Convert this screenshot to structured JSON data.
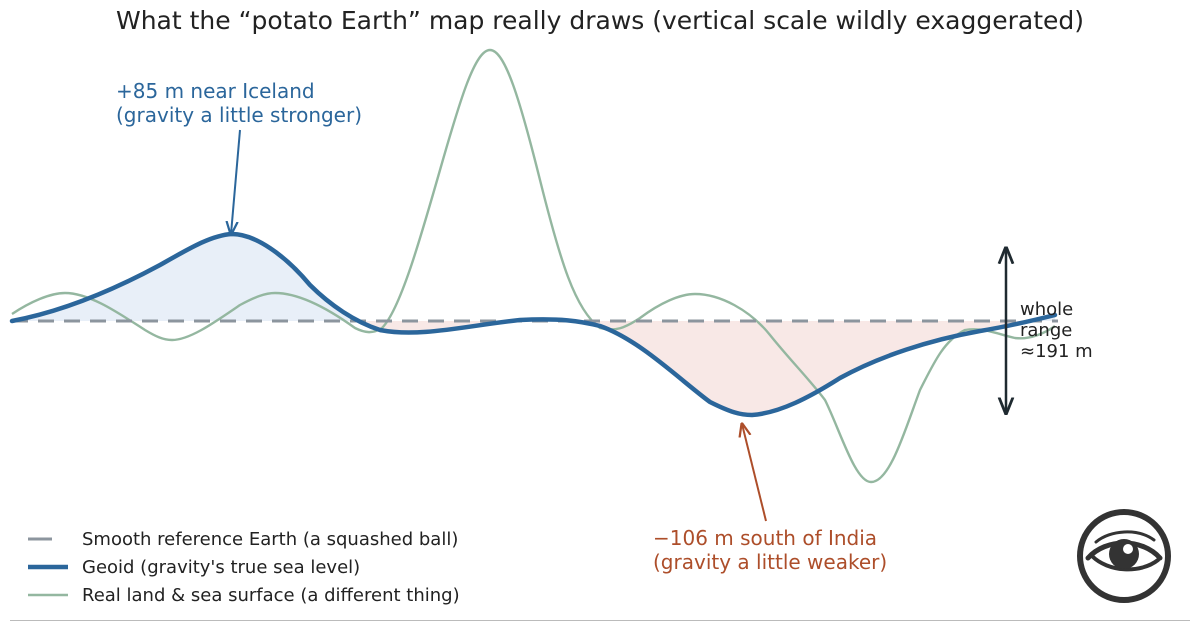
{
  "title": "What the “potato Earth” map really draws (vertical scale wildly exaggerated)",
  "annotations": {
    "high": {
      "line1": "+85 m near Iceland",
      "line2": "(gravity a little stronger)"
    },
    "low": {
      "line1": "−106 m south of India",
      "line2": "(gravity a little weaker)"
    },
    "range": {
      "line1": "whole",
      "line2": "range",
      "line3": "≈191 m"
    }
  },
  "legend": [
    {
      "label": "Smooth reference Earth (a squashed ball)",
      "style": "dashed",
      "color": "#8c959e"
    },
    {
      "label": "Geoid (gravity's true sea level)",
      "style": "thick",
      "color": "#2b669b"
    },
    {
      "label": "Real land & sea surface (a different thing)",
      "style": "thin",
      "color": "#94b7a0"
    }
  ],
  "colors": {
    "reference": "#8c959e",
    "geoid": "#2b669b",
    "surface": "#94b7a0",
    "above_fill": "#e8eff8",
    "below_fill": "#f8e8e6",
    "high_label": "#2b669b",
    "low_label": "#ad4e2a",
    "range_arrow": "#1f2a30"
  },
  "logo": {
    "icon": "eye-icon"
  }
}
